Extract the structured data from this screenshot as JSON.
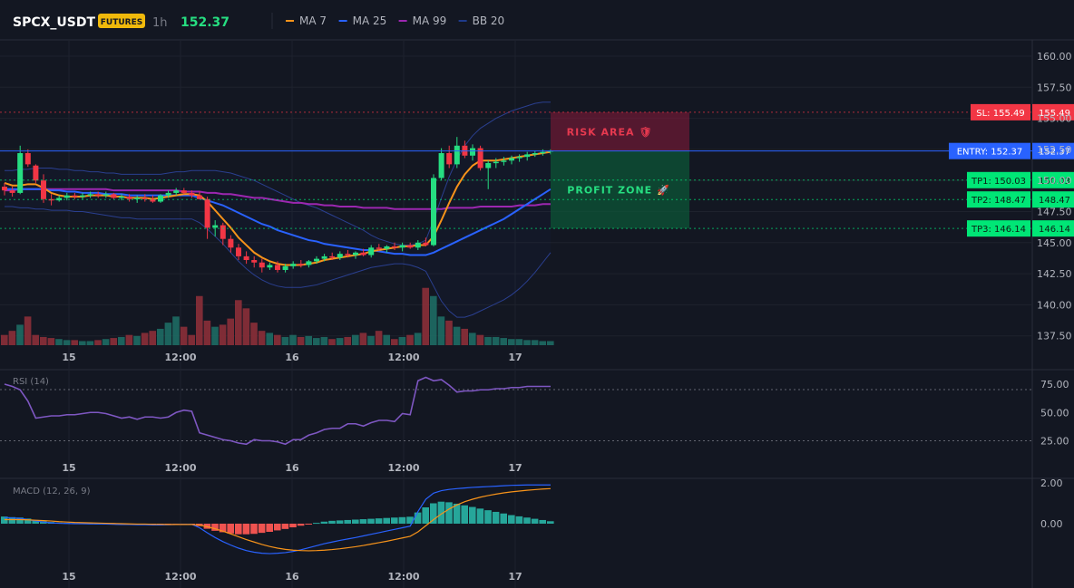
{
  "toolbar": {
    "symbol": "SPCX_USDT",
    "badge": "FUTURES",
    "interval": "1h",
    "price": "152.37",
    "legend": [
      {
        "label": "MA 7",
        "color": "#f7931a"
      },
      {
        "label": "MA 25",
        "color": "#2962ff"
      },
      {
        "label": "MA 99",
        "color": "#9c27b0"
      },
      {
        "label": "BB 20",
        "color": "#1e3a8a"
      }
    ]
  },
  "zones": {
    "risk_label": "RISK AREA 🛡",
    "profit_label": "PROFIT ZONE 🚀"
  },
  "levels": [
    {
      "label": "SL: 155.49",
      "value": 155.49,
      "price_text": "155.49",
      "color": "#f23645"
    },
    {
      "label": "ENTRY: 152.37",
      "value": 152.37,
      "price_text": "152.37",
      "color": "#2962ff"
    },
    {
      "label": "TP1: 150.03",
      "value": 150.03,
      "price_text": "150.03",
      "color": "#00e676"
    },
    {
      "label": "TP2: 148.47",
      "value": 148.47,
      "price_text": "148.47",
      "color": "#00e676"
    },
    {
      "label": "TP3: 146.14",
      "value": 146.14,
      "price_text": "146.14",
      "color": "#00e676"
    }
  ],
  "price_axis": [
    "160.00",
    "157.50",
    "155.00",
    "152.50",
    "150.00",
    "147.50",
    "145.00",
    "142.50",
    "140.00",
    "137.50"
  ],
  "time_axis": [
    "15",
    "12:00",
    "16",
    "12:00",
    "17"
  ],
  "rsi": {
    "title": "RSI (14)",
    "axis": [
      "75.00",
      "50.00",
      "25.00"
    ]
  },
  "macd": {
    "title": "MACD (12, 26, 9)",
    "axis": [
      "2.00",
      "0.00"
    ]
  },
  "chart_data": {
    "type": "candlestick",
    "candles": [
      [
        149.5,
        149.8,
        148.8,
        149.2
      ],
      [
        149.2,
        149.5,
        148.7,
        149.0
      ],
      [
        149.0,
        152.8,
        148.9,
        152.2
      ],
      [
        152.2,
        152.5,
        151.1,
        151.3
      ],
      [
        151.2,
        151.3,
        149.8,
        150.0
      ],
      [
        150.0,
        150.5,
        148.2,
        148.5
      ],
      [
        148.5,
        148.9,
        148.0,
        148.4
      ],
      [
        148.4,
        148.8,
        148.3,
        148.6
      ],
      [
        148.6,
        149.0,
        148.4,
        148.8
      ],
      [
        148.8,
        149.0,
        148.5,
        148.7
      ],
      [
        148.7,
        149.0,
        148.5,
        148.8
      ],
      [
        148.8,
        149.1,
        148.6,
        148.9
      ],
      [
        148.9,
        149.1,
        148.6,
        148.8
      ],
      [
        148.8,
        149.1,
        148.6,
        148.9
      ],
      [
        148.9,
        149.0,
        148.5,
        148.6
      ],
      [
        148.6,
        148.9,
        148.4,
        148.7
      ],
      [
        148.7,
        148.9,
        148.3,
        148.5
      ],
      [
        148.5,
        148.8,
        148.2,
        148.6
      ],
      [
        148.6,
        148.9,
        148.3,
        148.5
      ],
      [
        148.5,
        148.8,
        148.2,
        148.3
      ],
      [
        148.3,
        148.9,
        148.2,
        148.8
      ],
      [
        148.8,
        149.2,
        148.6,
        149.0
      ],
      [
        149.0,
        149.4,
        148.8,
        149.2
      ],
      [
        149.2,
        149.4,
        148.9,
        149.0
      ],
      [
        149.0,
        149.2,
        148.6,
        148.8
      ],
      [
        148.8,
        149.1,
        148.5,
        148.5
      ],
      [
        148.5,
        148.7,
        145.3,
        146.2
      ],
      [
        146.2,
        146.8,
        145.5,
        146.4
      ],
      [
        146.4,
        146.6,
        144.8,
        145.3
      ],
      [
        145.3,
        145.6,
        144.2,
        144.6
      ],
      [
        144.6,
        144.9,
        143.6,
        143.9
      ],
      [
        143.9,
        144.3,
        143.3,
        143.6
      ],
      [
        143.6,
        143.9,
        143.0,
        143.4
      ],
      [
        143.4,
        143.7,
        142.6,
        143.0
      ],
      [
        143.0,
        143.4,
        142.8,
        143.2
      ],
      [
        143.2,
        143.5,
        142.6,
        142.8
      ],
      [
        142.8,
        143.3,
        142.6,
        143.1
      ],
      [
        143.1,
        143.5,
        142.9,
        143.3
      ],
      [
        143.3,
        143.6,
        143.0,
        143.2
      ],
      [
        143.2,
        143.6,
        143.0,
        143.5
      ],
      [
        143.5,
        143.9,
        143.3,
        143.7
      ],
      [
        143.7,
        144.1,
        143.5,
        143.9
      ],
      [
        143.9,
        144.2,
        143.6,
        143.8
      ],
      [
        143.8,
        144.3,
        143.6,
        144.1
      ],
      [
        144.1,
        144.4,
        143.8,
        144.0
      ],
      [
        144.0,
        144.3,
        143.7,
        144.2
      ],
      [
        144.2,
        144.5,
        143.9,
        144.0
      ],
      [
        144.0,
        144.8,
        143.8,
        144.6
      ],
      [
        144.6,
        144.9,
        144.3,
        144.5
      ],
      [
        144.5,
        144.8,
        144.2,
        144.7
      ],
      [
        144.7,
        145.0,
        144.4,
        144.6
      ],
      [
        144.6,
        145.0,
        144.3,
        144.8
      ],
      [
        144.8,
        145.0,
        144.5,
        144.6
      ],
      [
        144.6,
        145.2,
        144.4,
        145.0
      ],
      [
        145.0,
        145.4,
        144.7,
        144.8
      ],
      [
        144.8,
        150.5,
        144.7,
        150.2
      ],
      [
        150.2,
        152.6,
        150.0,
        152.2
      ],
      [
        152.2,
        152.8,
        151.0,
        151.3
      ],
      [
        151.3,
        153.5,
        151.0,
        152.8
      ],
      [
        152.8,
        153.2,
        151.8,
        152.0
      ],
      [
        152.0,
        152.9,
        151.6,
        152.6
      ],
      [
        152.6,
        152.8,
        150.8,
        151.0
      ],
      [
        151.0,
        151.6,
        149.3,
        151.4
      ],
      [
        151.4,
        151.8,
        151.0,
        151.5
      ],
      [
        151.5,
        151.9,
        151.2,
        151.6
      ],
      [
        151.6,
        152.0,
        151.3,
        151.8
      ],
      [
        151.8,
        152.1,
        151.5,
        151.9
      ],
      [
        151.9,
        152.3,
        151.6,
        152.1
      ],
      [
        152.1,
        152.4,
        151.9,
        152.2
      ],
      [
        152.2,
        152.5,
        152.0,
        152.3
      ],
      [
        152.3,
        152.5,
        152.1,
        152.4
      ]
    ],
    "volumes": [
      10,
      14,
      20,
      28,
      10,
      8,
      7,
      6,
      5,
      5,
      4,
      4,
      5,
      6,
      7,
      8,
      10,
      9,
      12,
      14,
      16,
      22,
      28,
      18,
      10,
      48,
      24,
      18,
      20,
      26,
      44,
      36,
      22,
      14,
      12,
      10,
      8,
      10,
      8,
      9,
      7,
      8,
      6,
      7,
      8,
      10,
      12,
      9,
      14,
      10,
      6,
      8,
      10,
      12,
      56,
      48,
      28,
      24,
      18,
      16,
      12,
      10,
      8,
      8,
      7,
      6,
      6,
      5,
      5,
      4,
      4
    ],
    "ma7": [
      149.8,
      149.6,
      149.6,
      149.7,
      149.7,
      149.4,
      149.0,
      148.8,
      148.7,
      148.7,
      148.7,
      148.8,
      148.8,
      148.8,
      148.7,
      148.7,
      148.6,
      148.6,
      148.6,
      148.5,
      148.6,
      148.7,
      148.8,
      148.9,
      148.9,
      148.8,
      148.3,
      147.6,
      146.9,
      146.2,
      145.4,
      144.8,
      144.2,
      143.8,
      143.5,
      143.3,
      143.2,
      143.2,
      143.2,
      143.3,
      143.4,
      143.6,
      143.7,
      143.8,
      143.9,
      144.0,
      144.1,
      144.3,
      144.4,
      144.5,
      144.6,
      144.7,
      144.7,
      144.8,
      144.8,
      145.5,
      146.8,
      148.2,
      149.5,
      150.5,
      151.2,
      151.6,
      151.6,
      151.6,
      151.7,
      151.8,
      151.9,
      152.0,
      152.1,
      152.2,
      152.3
    ],
    "ma25": [
      149.3,
      149.3,
      149.3,
      149.3,
      149.3,
      149.3,
      149.2,
      149.2,
      149.1,
      149.1,
      149.0,
      149.0,
      149.0,
      148.9,
      148.9,
      148.9,
      148.8,
      148.8,
      148.8,
      148.8,
      148.8,
      148.8,
      148.8,
      148.8,
      148.8,
      148.6,
      148.4,
      148.2,
      148.0,
      147.7,
      147.4,
      147.1,
      146.8,
      146.5,
      146.3,
      146.0,
      145.8,
      145.6,
      145.4,
      145.2,
      145.1,
      144.9,
      144.8,
      144.7,
      144.6,
      144.5,
      144.4,
      144.4,
      144.3,
      144.2,
      144.1,
      144.1,
      144.0,
      144.0,
      144.0,
      144.2,
      144.5,
      144.8,
      145.1,
      145.4,
      145.7,
      146.0,
      146.3,
      146.6,
      146.9,
      147.3,
      147.7,
      148.1,
      148.5,
      148.9,
      149.3
    ],
    "ma99": [
      149.2,
      149.2,
      149.3,
      149.3,
      149.3,
      149.3,
      149.3,
      149.3,
      149.3,
      149.3,
      149.3,
      149.3,
      149.3,
      149.3,
      149.2,
      149.2,
      149.2,
      149.2,
      149.2,
      149.2,
      149.2,
      149.2,
      149.2,
      149.1,
      149.1,
      149.1,
      149.0,
      149.0,
      148.9,
      148.9,
      148.8,
      148.7,
      148.6,
      148.6,
      148.5,
      148.4,
      148.3,
      148.2,
      148.2,
      148.1,
      148.1,
      148.0,
      148.0,
      147.9,
      147.9,
      147.9,
      147.8,
      147.8,
      147.8,
      147.8,
      147.7,
      147.7,
      147.7,
      147.7,
      147.7,
      147.7,
      147.7,
      147.8,
      147.8,
      147.8,
      147.8,
      147.9,
      147.9,
      147.9,
      147.9,
      147.9,
      148.0,
      148.0,
      148.0,
      148.1,
      148.1
    ],
    "bb_upper": [
      150.8,
      150.8,
      150.9,
      150.9,
      151.0,
      151.0,
      151.0,
      150.9,
      150.9,
      150.8,
      150.8,
      150.7,
      150.7,
      150.6,
      150.6,
      150.5,
      150.5,
      150.5,
      150.5,
      150.5,
      150.5,
      150.6,
      150.7,
      150.7,
      150.8,
      150.8,
      150.8,
      150.8,
      150.7,
      150.6,
      150.4,
      150.2,
      150.0,
      149.7,
      149.4,
      149.1,
      148.8,
      148.5,
      148.2,
      148.0,
      147.8,
      147.5,
      147.2,
      146.9,
      146.6,
      146.3,
      146.0,
      145.6,
      145.3,
      145.1,
      144.9,
      144.8,
      144.8,
      144.9,
      145.2,
      146.8,
      148.6,
      150.3,
      151.7,
      152.8,
      153.6,
      154.2,
      154.6,
      155.0,
      155.3,
      155.6,
      155.8,
      156.0,
      156.2,
      156.3,
      156.3
    ],
    "bb_lower": [
      147.9,
      147.9,
      147.8,
      147.8,
      147.7,
      147.7,
      147.6,
      147.6,
      147.6,
      147.5,
      147.5,
      147.4,
      147.3,
      147.2,
      147.1,
      147.0,
      147.0,
      146.9,
      146.9,
      146.9,
      146.9,
      146.9,
      146.9,
      146.9,
      146.9,
      146.6,
      146.1,
      145.5,
      144.9,
      144.2,
      143.5,
      142.9,
      142.4,
      142.0,
      141.7,
      141.5,
      141.4,
      141.4,
      141.4,
      141.5,
      141.6,
      141.8,
      142.0,
      142.2,
      142.4,
      142.6,
      142.8,
      143.0,
      143.1,
      143.2,
      143.3,
      143.3,
      143.2,
      143.0,
      142.7,
      141.5,
      140.3,
      139.5,
      139.0,
      139.0,
      139.2,
      139.5,
      139.8,
      140.1,
      140.4,
      140.8,
      141.3,
      141.9,
      142.6,
      143.4,
      144.2
    ],
    "rsi": [
      75,
      73,
      70,
      60,
      45,
      46,
      47,
      47,
      48,
      48,
      49,
      50,
      50,
      49,
      47,
      45,
      46,
      44,
      46,
      46,
      45,
      46,
      50,
      52,
      51,
      32,
      30,
      28,
      26,
      25,
      23,
      22,
      26,
      25,
      25,
      24,
      22,
      26,
      26,
      30,
      32,
      35,
      36,
      36,
      40,
      40,
      38,
      41,
      43,
      43,
      42,
      49,
      48,
      78,
      81,
      78,
      79,
      74,
      68,
      69,
      69,
      70,
      70,
      71,
      71,
      72,
      72,
      73,
      73,
      73,
      73
    ],
    "macd_hist": [
      0.35,
      0.32,
      0.3,
      0.25,
      0.18,
      0.12,
      0.08,
      0.05,
      0.04,
      0.03,
      0.02,
      0.02,
      0.01,
      0.0,
      -0.01,
      -0.02,
      -0.02,
      -0.03,
      -0.02,
      -0.03,
      -0.03,
      -0.02,
      -0.02,
      -0.01,
      -0.01,
      -0.12,
      -0.25,
      -0.35,
      -0.42,
      -0.48,
      -0.52,
      -0.52,
      -0.5,
      -0.45,
      -0.4,
      -0.33,
      -0.26,
      -0.18,
      -0.1,
      -0.03,
      0.04,
      0.1,
      0.14,
      0.16,
      0.18,
      0.2,
      0.22,
      0.24,
      0.26,
      0.28,
      0.3,
      0.32,
      0.34,
      0.55,
      0.8,
      1.0,
      1.08,
      1.05,
      0.98,
      0.9,
      0.82,
      0.74,
      0.66,
      0.58,
      0.5,
      0.42,
      0.36,
      0.3,
      0.24,
      0.18,
      0.12
    ],
    "macd_line": [
      0.3,
      0.28,
      0.26,
      0.2,
      0.13,
      0.08,
      0.04,
      0.02,
      0.01,
      0.0,
      0.0,
      -0.01,
      -0.01,
      -0.02,
      -0.03,
      -0.04,
      -0.04,
      -0.05,
      -0.05,
      -0.06,
      -0.06,
      -0.05,
      -0.04,
      -0.03,
      -0.03,
      -0.2,
      -0.45,
      -0.68,
      -0.88,
      -1.05,
      -1.2,
      -1.32,
      -1.4,
      -1.45,
      -1.47,
      -1.45,
      -1.42,
      -1.36,
      -1.28,
      -1.18,
      -1.08,
      -0.98,
      -0.9,
      -0.82,
      -0.75,
      -0.68,
      -0.6,
      -0.52,
      -0.44,
      -0.36,
      -0.28,
      -0.2,
      -0.12,
      0.6,
      1.2,
      1.5,
      1.62,
      1.68,
      1.72,
      1.75,
      1.78,
      1.8,
      1.82,
      1.84,
      1.86,
      1.88,
      1.89,
      1.9,
      1.9,
      1.9,
      1.9
    ],
    "macd_signal": [
      0.2,
      0.2,
      0.2,
      0.19,
      0.17,
      0.15,
      0.13,
      0.1,
      0.08,
      0.06,
      0.05,
      0.04,
      0.03,
      0.02,
      0.01,
      0.0,
      -0.01,
      -0.02,
      -0.02,
      -0.03,
      -0.03,
      -0.04,
      -0.04,
      -0.04,
      -0.04,
      -0.07,
      -0.15,
      -0.25,
      -0.37,
      -0.5,
      -0.64,
      -0.78,
      -0.9,
      -1.02,
      -1.12,
      -1.2,
      -1.26,
      -1.3,
      -1.32,
      -1.33,
      -1.32,
      -1.3,
      -1.27,
      -1.23,
      -1.18,
      -1.13,
      -1.07,
      -1.0,
      -0.93,
      -0.86,
      -0.78,
      -0.7,
      -0.62,
      -0.4,
      -0.1,
      0.2,
      0.48,
      0.72,
      0.92,
      1.08,
      1.2,
      1.3,
      1.38,
      1.45,
      1.51,
      1.56,
      1.6,
      1.64,
      1.67,
      1.7,
      1.72
    ]
  }
}
